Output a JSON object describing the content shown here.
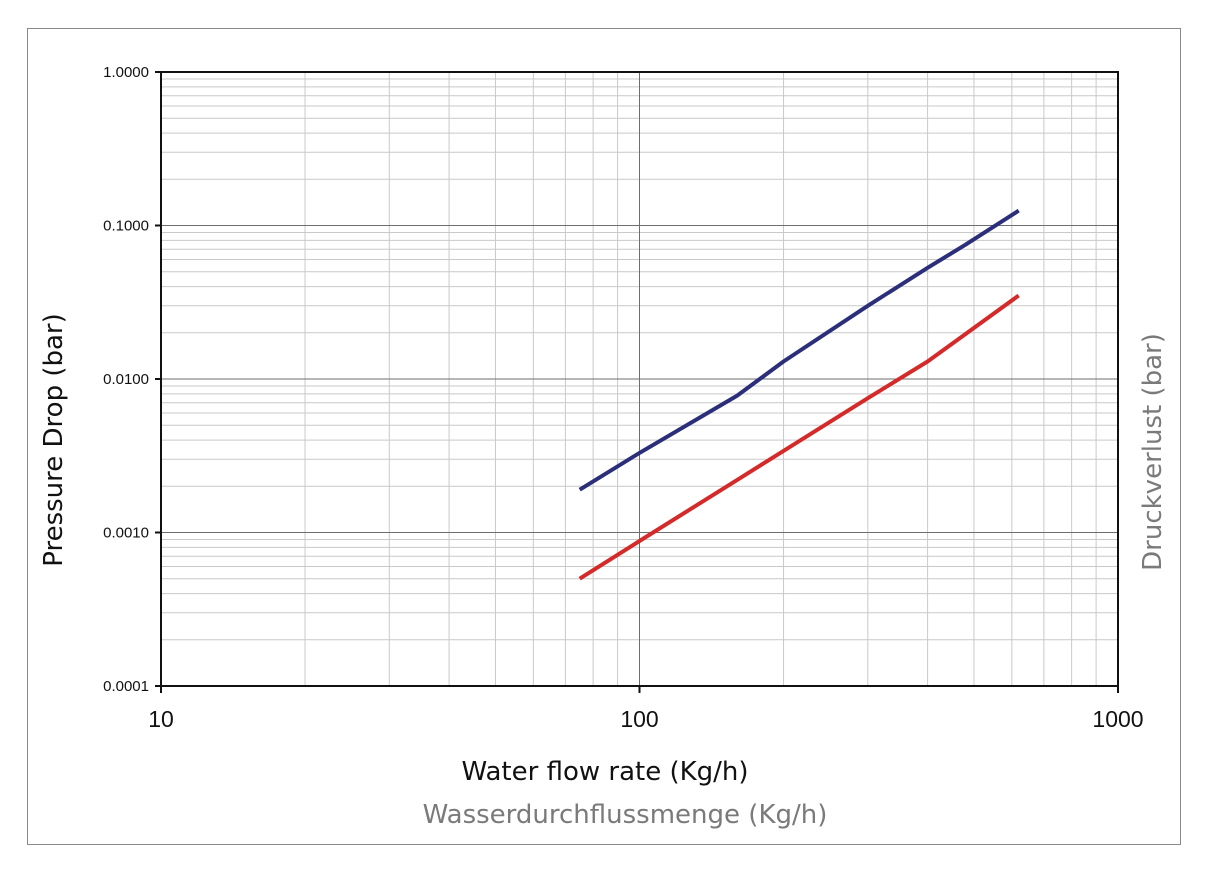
{
  "chart_data": {
    "type": "line",
    "xlabel": "Water flow rate (Kg/h)",
    "xlabel_secondary": "Wasserdurchflussmenge (Kg/h)",
    "ylabel": "Pressure Drop (bar)",
    "ylabel_secondary": "Druckverlust (bar)",
    "x_scale": "log",
    "y_scale": "log",
    "xlim": [
      10,
      1000
    ],
    "ylim": [
      0.0001,
      1
    ],
    "x_ticks": [
      "10",
      "100",
      "1000"
    ],
    "y_ticks": [
      "0.0001",
      "0.0010",
      "0.0100",
      "0.1000",
      "1.0000"
    ],
    "grid": true,
    "series": [
      {
        "color": "#2b2f7a",
        "x": [
          75,
          100,
          160,
          200,
          300,
          400,
          480,
          620
        ],
        "y": [
          0.0019,
          0.0033,
          0.0078,
          0.013,
          0.03,
          0.053,
          0.075,
          0.125
        ]
      },
      {
        "color": "#d42a2a",
        "x": [
          75,
          100,
          160,
          200,
          300,
          400,
          620
        ],
        "y": [
          0.0005,
          0.00088,
          0.0022,
          0.0034,
          0.0075,
          0.013,
          0.035
        ]
      }
    ]
  },
  "colors": {
    "primary_label": "#111111",
    "secondary_label": "#7a7a7a",
    "grid": "#c9c9c9",
    "major_grid": "#6e6e6e"
  }
}
